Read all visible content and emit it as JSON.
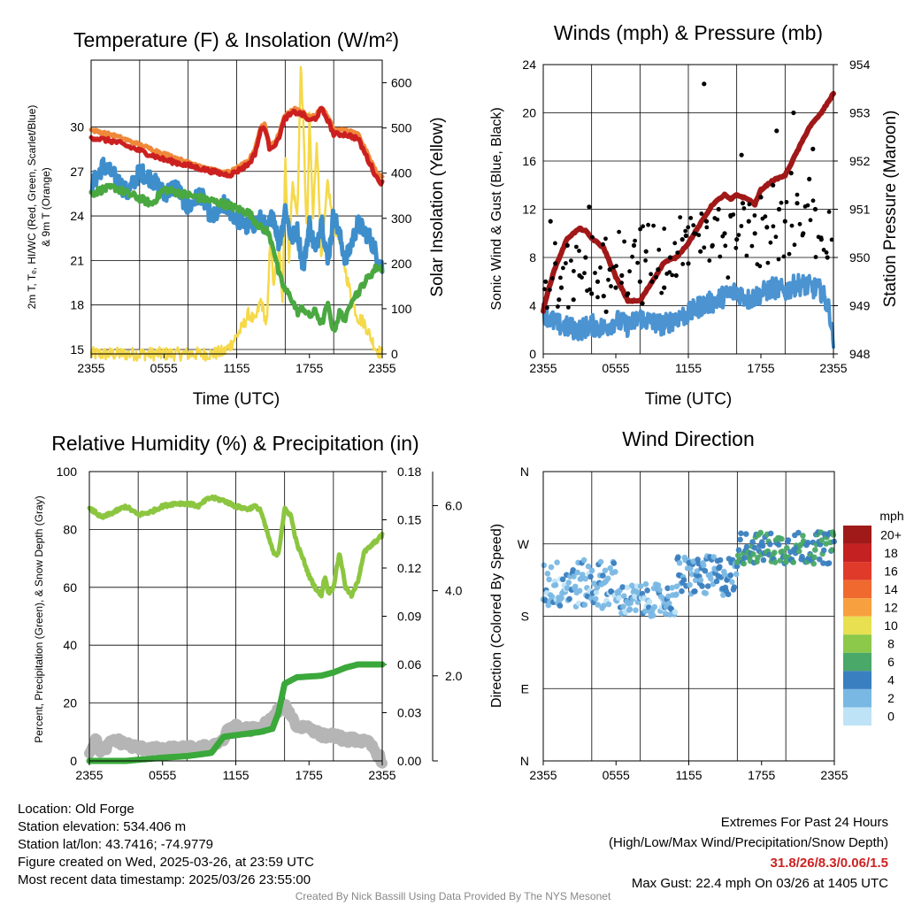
{
  "panels": {
    "temp": {
      "title": "Temperature (F) & Insolation (W/m²)",
      "xlabel": "Time (UTC)",
      "ylabel_left_lines": [
        "2m T, Tₑ, HI/WC (Red, Green, Scarlet/Blue)",
        "& 9m T (Orange)"
      ],
      "ylabel_right": "Solar Insolation (Yellow)"
    },
    "wind": {
      "title": "Winds (mph) & Pressure (mb)",
      "xlabel": "Time (UTC)",
      "ylabel_left": "Sonic Wind & Gust (Blue, Black)",
      "ylabel_right": "Station Pressure (Maroon)"
    },
    "rh": {
      "title": "Relative Humidity (%) & Precipitation (in)",
      "ylabel_left": "Percent, Precipitation (Green), & Snow Depth (Gray)"
    },
    "dir": {
      "title": "Wind Direction",
      "ylabel_left": "Direction (Colored By Speed)",
      "colorbar_unit": "mph",
      "colorbar_labels": [
        "20+",
        "18",
        "16",
        "14",
        "12",
        "10",
        "8",
        "6",
        "4",
        "2",
        "0"
      ],
      "colorbar_colors": [
        "#a01a1a",
        "#c42222",
        "#e03a2a",
        "#f06a30",
        "#f7a040",
        "#e8e050",
        "#8cc84a",
        "#4aa868",
        "#3a7fc0",
        "#7ab8e4",
        "#bfe3f6"
      ]
    }
  },
  "chart_data": [
    {
      "type": "line",
      "title": "Temperature (F) & Insolation (W/m²)",
      "xlabel": "Time (UTC)",
      "xticks": [
        "2355",
        "0555",
        "1155",
        "1755",
        "2355"
      ],
      "xlim_hours": [
        0,
        24
      ],
      "ylim_left": [
        14.7,
        34.5
      ],
      "yticks_left": [
        15,
        18,
        21,
        24,
        27,
        30
      ],
      "ylim_right": [
        0,
        650
      ],
      "yticks_right": [
        0,
        100,
        200,
        300,
        400,
        500,
        600
      ],
      "series": [
        {
          "name": "2m T",
          "color": "#cc2020",
          "axis": "left",
          "x": [
            0,
            2,
            4,
            6,
            7,
            8,
            9,
            10,
            11,
            11.5,
            12,
            13,
            13.5,
            14,
            14.3,
            14.7,
            15.3,
            16,
            16.8,
            17.5,
            18,
            18.5,
            19,
            19.5,
            20,
            21,
            22,
            23,
            23.6,
            24
          ],
          "y": [
            29.3,
            29.0,
            28.4,
            27.8,
            27.6,
            27.4,
            27.2,
            27.0,
            26.8,
            26.8,
            27.0,
            27.5,
            28.2,
            29.8,
            30.0,
            28.6,
            28.9,
            30.6,
            31.0,
            30.8,
            30.4,
            30.6,
            31.2,
            30.5,
            29.5,
            29.5,
            29.2,
            27.5,
            26.5,
            26.2
          ]
        },
        {
          "name": "9m T",
          "color": "#f0883a",
          "axis": "left",
          "x": [
            0,
            2,
            4,
            6,
            7,
            8,
            9,
            10,
            11,
            11.5,
            12,
            13,
            13.5,
            14,
            14.3,
            14.7,
            15.3,
            16,
            16.8,
            17.5,
            18,
            18.5,
            19,
            19.5,
            20,
            21,
            22,
            23,
            23.6,
            24
          ],
          "y": [
            29.8,
            29.4,
            28.8,
            28.2,
            27.9,
            27.6,
            27.4,
            27.1,
            26.9,
            27.0,
            27.2,
            27.7,
            28.5,
            30.0,
            30.2,
            28.8,
            29.1,
            30.8,
            31.2,
            31.0,
            30.6,
            30.8,
            31.3,
            30.7,
            29.8,
            29.8,
            29.5,
            27.8,
            26.8,
            26.6
          ]
        },
        {
          "name": "Tₑ",
          "color": "#4aa840",
          "axis": "left",
          "x": [
            0,
            1,
            2,
            3,
            4,
            5,
            6,
            11,
            12,
            13,
            14,
            14.5,
            15,
            15.5,
            16,
            16.5,
            17,
            17.5,
            18,
            18.5,
            19,
            19.5,
            20,
            20.5,
            21,
            21.5,
            22,
            22.5,
            23,
            23.5,
            24
          ],
          "y": [
            25.5,
            25.8,
            25.9,
            25.5,
            25.2,
            24.8,
            25.8,
            24.8,
            24.5,
            24.2,
            23.2,
            23.0,
            22.0,
            20.0,
            19.0,
            18.5,
            17.5,
            17.8,
            17.2,
            17.6,
            16.7,
            18.0,
            16.2,
            17.5,
            17.0,
            18.5,
            18.8,
            19.5,
            20.0,
            20.5,
            20.5
          ]
        },
        {
          "name": "HI/WC",
          "color": "#3e8ecc",
          "axis": "left",
          "x": [
            0,
            1,
            2,
            3,
            4,
            5,
            6,
            7,
            8,
            9,
            10,
            11,
            12,
            13,
            14,
            14.5,
            15,
            15.5,
            16,
            16.5,
            17,
            17.5,
            18,
            18.5,
            19,
            19.5,
            20,
            21,
            22,
            23,
            24
          ],
          "y": [
            26.0,
            27.4,
            26.6,
            25.5,
            27.0,
            26.5,
            25.5,
            26.0,
            24.5,
            25.5,
            23.8,
            24.8,
            23.8,
            23.2,
            23.8,
            23.0,
            24.2,
            22.0,
            24.5,
            22.5,
            23.0,
            20.5,
            23.5,
            21.5,
            24.0,
            20.8,
            24.2,
            21.0,
            23.5,
            22.5,
            20.5
          ]
        },
        {
          "name": "Solar Insolation",
          "color": "#f5d94a",
          "axis": "right",
          "x": [
            0,
            6,
            10,
            11,
            11.5,
            12,
            12.5,
            13,
            13.5,
            14,
            14.5,
            14.8,
            15,
            15.5,
            15.8,
            16,
            16.3,
            16.6,
            17,
            17.3,
            17.6,
            17.8,
            18,
            18.3,
            18.6,
            19,
            19.5,
            20,
            20.5,
            21,
            21.5,
            22,
            22.5,
            23,
            23.5,
            24
          ],
          "y": [
            0,
            0,
            0,
            5,
            20,
            40,
            60,
            90,
            70,
            120,
            60,
            280,
            150,
            230,
            120,
            450,
            200,
            380,
            300,
            650,
            420,
            250,
            520,
            300,
            480,
            200,
            380,
            280,
            260,
            180,
            120,
            80,
            70,
            40,
            10,
            0
          ]
        }
      ]
    },
    {
      "type": "line",
      "title": "Winds (mph) & Pressure (mb)",
      "xlabel": "Time (UTC)",
      "xticks": [
        "2355",
        "0555",
        "1155",
        "1755",
        "2355"
      ],
      "xlim_hours": [
        0,
        24
      ],
      "ylim_left": [
        0,
        24
      ],
      "yticks_left": [
        0,
        4,
        8,
        12,
        16,
        20,
        24
      ],
      "ylim_right": [
        948,
        954
      ],
      "yticks_right": [
        948,
        949,
        950,
        951,
        952,
        953,
        954
      ],
      "series": [
        {
          "name": "Sonic Wind",
          "color": "#4b93d1",
          "axis": "left",
          "x": [
            0,
            1,
            2,
            3,
            4,
            5,
            6,
            7,
            8,
            9,
            10,
            11,
            12,
            13,
            14,
            15,
            16,
            17,
            18,
            19,
            20,
            21,
            22,
            23,
            23.7,
            24
          ],
          "y": [
            3.5,
            2.5,
            2.2,
            2.0,
            2.4,
            2.1,
            2.8,
            2.3,
            3.0,
            2.6,
            2.4,
            3.0,
            3.3,
            4.0,
            4.3,
            4.8,
            5.2,
            4.5,
            5.0,
            5.5,
            5.2,
            5.8,
            5.6,
            5.2,
            3.5,
            0.8
          ]
        },
        {
          "name": "Station Pressure",
          "color": "#a01818",
          "axis": "right",
          "x": [
            0,
            0.5,
            1,
            2,
            3,
            3.5,
            4,
            5,
            6,
            7,
            8,
            9,
            10,
            11,
            12,
            13,
            14,
            15,
            15.5,
            16,
            17,
            17.5,
            18,
            19,
            20,
            21,
            22,
            23,
            24
          ],
          "y": [
            948.9,
            949.4,
            949.8,
            950.4,
            950.6,
            950.55,
            950.4,
            950.2,
            949.6,
            949.1,
            949.1,
            949.5,
            949.9,
            950.0,
            950.3,
            950.7,
            951.1,
            951.3,
            951.2,
            951.3,
            951.2,
            951.1,
            951.4,
            951.6,
            951.7,
            952.2,
            952.7,
            953.0,
            953.4
          ]
        }
      ],
      "gust_points": {
        "name": "Gust",
        "color": "#000000",
        "x": [
          0.2,
          0.6,
          1.0,
          1.5,
          2.0,
          2.5,
          3.0,
          3.5,
          4.0,
          4.5,
          5.0,
          5.5,
          6.0,
          6.5,
          7.0,
          7.5,
          8.0,
          8.5,
          9.0,
          9.5,
          10.0,
          10.5,
          11.0,
          11.5,
          12.0,
          12.5,
          13.0,
          13.5,
          14.0,
          14.5,
          15.0,
          15.5,
          16.0,
          16.5,
          17.0,
          17.5,
          18.0,
          18.5,
          19.0,
          19.5,
          20.0,
          20.5,
          21.0,
          21.5,
          22.0,
          22.5,
          23.0,
          23.5,
          1.3,
          3.8,
          5.2,
          8.2,
          11.8,
          13.3,
          16.4,
          19.3,
          20.7,
          22.3
        ],
        "y": [
          6.0,
          11.0,
          7.5,
          5.5,
          9.0,
          4.5,
          6.5,
          8.0,
          5.0,
          6.0,
          4.8,
          7.0,
          5.5,
          6.5,
          5.0,
          9.0,
          6.0,
          8.5,
          6.0,
          7.0,
          5.5,
          8.0,
          6.5,
          9.5,
          7.5,
          10.0,
          8.5,
          11.0,
          9.0,
          12.0,
          10.0,
          11.5,
          9.5,
          12.5,
          11.0,
          10.0,
          13.0,
          10.5,
          14.0,
          12.0,
          11.0,
          15.0,
          12.5,
          10.0,
          14.5,
          12.0,
          9.5,
          8.0,
          4.5,
          12.2,
          3.5,
          4.2,
          9.8,
          22.4,
          16.5,
          18.5,
          20.0,
          17.0
        ]
      }
    },
    {
      "type": "line",
      "title": "Relative Humidity (%) & Precipitation (in)",
      "xticks": [
        "2355",
        "0555",
        "1155",
        "1755",
        "2355"
      ],
      "xlim_hours": [
        0,
        24
      ],
      "ylim_left": [
        0,
        100
      ],
      "yticks_left": [
        0,
        20,
        40,
        60,
        80,
        100
      ],
      "ylim_precip": [
        0,
        0.18
      ],
      "yticks_precip": [
        "0.00",
        "0.03",
        "0.06",
        "0.09",
        "0.12",
        "0.15",
        "0.18"
      ],
      "ylim_snow": [
        0,
        6.8
      ],
      "yticks_snow": [
        "2.0",
        "4.0",
        "6.0"
      ],
      "series": [
        {
          "name": "Relative Humidity",
          "color": "#8cc640",
          "axis": "left",
          "x": [
            0,
            0.5,
            1,
            2,
            3,
            4,
            5,
            6,
            7,
            8,
            9,
            9.5,
            10,
            11,
            12,
            13,
            13.5,
            14,
            14.5,
            15,
            15.2,
            15.5,
            16,
            16.5,
            17,
            17.5,
            18,
            18.5,
            19,
            19.3,
            19.6,
            20,
            20.5,
            21,
            21.5,
            22,
            22.5,
            23,
            23.5,
            24
          ],
          "y": [
            87,
            86,
            84,
            86,
            88,
            85,
            86,
            88,
            89,
            89,
            88,
            90,
            91,
            90,
            88,
            87,
            88,
            87,
            80,
            73,
            71,
            72,
            87,
            85,
            75,
            70,
            64,
            60,
            57,
            64,
            58,
            60,
            72,
            60,
            57,
            62,
            72,
            74,
            76,
            78
          ]
        },
        {
          "name": "Precipitation",
          "color": "#3aa83a",
          "axis": "precip",
          "x": [
            0,
            3,
            6,
            8,
            10,
            10.5,
            11,
            12,
            13,
            14,
            15,
            15.5,
            16,
            17,
            19,
            20,
            21,
            22,
            23,
            24
          ],
          "y": [
            0,
            0,
            0.002,
            0.003,
            0.005,
            0.01,
            0.015,
            0.016,
            0.017,
            0.018,
            0.02,
            0.03,
            0.048,
            0.052,
            0.053,
            0.055,
            0.058,
            0.06,
            0.06,
            0.06
          ]
        },
        {
          "name": "Snow Depth",
          "color": "#b5b5b5",
          "axis": "snow",
          "x": [
            0,
            0.5,
            1,
            2,
            3,
            4,
            5,
            6,
            7,
            8,
            9,
            10,
            11,
            11.5,
            12,
            13,
            14,
            14.5,
            15,
            15.5,
            16,
            16.5,
            17,
            18,
            19,
            20,
            21,
            22,
            23,
            23.5,
            24
          ],
          "y": [
            0.2,
            0.5,
            0.2,
            0.5,
            0.4,
            0.3,
            0.3,
            0.25,
            0.3,
            0.3,
            0.3,
            0.35,
            0.5,
            0.8,
            0.8,
            0.75,
            0.75,
            0.9,
            1.0,
            1.2,
            1.3,
            1.1,
            0.8,
            0.8,
            0.6,
            0.6,
            0.5,
            0.5,
            0.4,
            0.2,
            0.0
          ]
        }
      ]
    },
    {
      "type": "scatter",
      "title": "Wind Direction",
      "xticks": [
        "2355",
        "0555",
        "1155",
        "1755",
        "2355"
      ],
      "xlim_hours": [
        0,
        24
      ],
      "ylim_deg": [
        0,
        360
      ],
      "yticks": [
        "N",
        "E",
        "S",
        "W",
        "N"
      ],
      "segments": [
        {
          "x_start": 0,
          "x_end": 6,
          "dir_center": 220,
          "dir_spread": 30,
          "speed": 2
        },
        {
          "x_start": 6,
          "x_end": 11,
          "dir_center": 200,
          "dir_spread": 20,
          "speed": 2
        },
        {
          "x_start": 11,
          "x_end": 16,
          "dir_center": 230,
          "dir_spread": 25,
          "speed": 3
        },
        {
          "x_start": 16,
          "x_end": 24,
          "dir_center": 265,
          "dir_spread": 20,
          "speed": 5
        }
      ]
    }
  ],
  "footer": {
    "location": "Location: Old Forge",
    "elevation": "Station elevation: 534.406 m",
    "latlon": "Station lat/lon: 43.7416; -74.9779",
    "created": "Figure created on Wed, 2025-03-26, at 23:59 UTC",
    "recent": "Most recent data timestamp: 2025/03/26 23:55:00",
    "extremes_title": "Extremes For Past 24 Hours",
    "extremes_sub": "(High/Low/Max Wind/Precipitation/Snow Depth)",
    "extremes_values": "31.8/26/8.3/0.06/1.5",
    "max_gust": "Max Gust: 22.4 mph On 03/26 at 1405 UTC",
    "credit": "Created By Nick Bassill Using Data Provided By The NYS Mesonet"
  }
}
